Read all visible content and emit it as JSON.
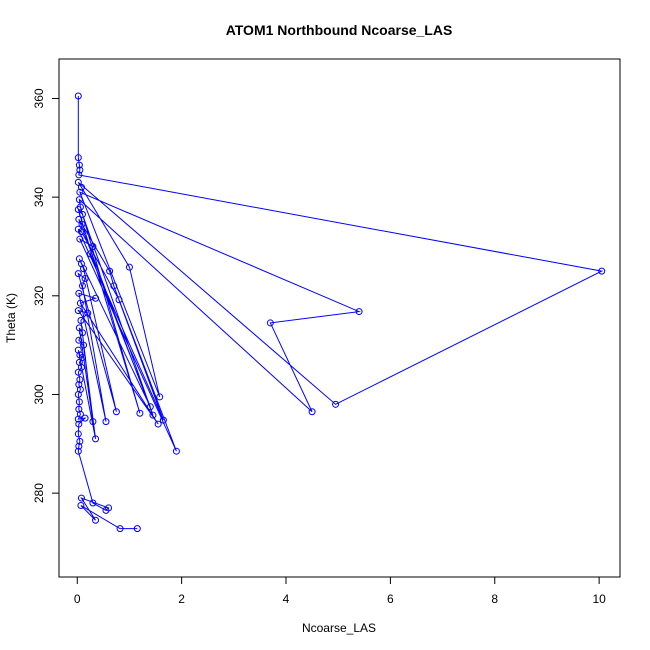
{
  "chart_data": {
    "type": "line",
    "title": "ATOM1 Northbound Ncoarse_LAS",
    "xlabel": "Ncoarse_LAS",
    "ylabel": "Theta (K)",
    "xlim": [
      -0.35,
      10.4
    ],
    "ylim": [
      263,
      368
    ],
    "xticks": [
      0,
      2,
      4,
      6,
      8,
      10
    ],
    "yticks": [
      280,
      300,
      320,
      340,
      360
    ],
    "grid": false,
    "legend": "none",
    "color": "#0000ff",
    "series": [
      {
        "points": [
          [
            0.02,
            360.5
          ],
          [
            0.02,
            348.0
          ],
          [
            0.04,
            346.5
          ],
          [
            0.05,
            345.5
          ],
          [
            0.03,
            344.5
          ],
          [
            10.05,
            325.0
          ],
          [
            4.95,
            298.0
          ],
          [
            0.02,
            343.0
          ],
          [
            0.08,
            342.0
          ],
          [
            1.0,
            325.8
          ],
          [
            1.58,
            299.5
          ],
          [
            0.05,
            341.0
          ],
          [
            5.4,
            316.8
          ],
          [
            3.7,
            314.5
          ],
          [
            4.5,
            296.5
          ],
          [
            0.04,
            339.5
          ],
          [
            0.06,
            338.0
          ],
          [
            1.2,
            296.2
          ],
          [
            0.02,
            337.5
          ],
          [
            0.1,
            336.5
          ],
          [
            1.45,
            295.8
          ],
          [
            0.03,
            335.5
          ],
          [
            0.09,
            334.5
          ],
          [
            0.62,
            325.0
          ],
          [
            0.7,
            322.0
          ],
          [
            1.65,
            294.8
          ],
          [
            0.02,
            333.5
          ],
          [
            0.08,
            333.0
          ],
          [
            0.8,
            319.2
          ],
          [
            1.9,
            288.5
          ],
          [
            0.05,
            331.5
          ],
          [
            0.3,
            330.0
          ],
          [
            0.25,
            328.5
          ],
          [
            1.4,
            297.5
          ],
          [
            0.04,
            327.5
          ],
          [
            0.08,
            326.5
          ],
          [
            0.12,
            325.5
          ],
          [
            0.75,
            296.5
          ],
          [
            0.02,
            324.5
          ],
          [
            0.15,
            323.5
          ],
          [
            0.1,
            322.0
          ],
          [
            0.55,
            294.5
          ],
          [
            0.03,
            320.5
          ],
          [
            0.35,
            319.5
          ],
          [
            0.06,
            318.5
          ],
          [
            1.55,
            294.0
          ],
          [
            0.02,
            317.0
          ],
          [
            0.2,
            316.5
          ],
          [
            0.07,
            315.0
          ],
          [
            0.3,
            294.5
          ],
          [
            0.04,
            313.5
          ],
          [
            0.1,
            312.5
          ],
          [
            0.03,
            311.0
          ],
          [
            0.12,
            310.0
          ],
          [
            0.35,
            291.0
          ],
          [
            0.02,
            309.0
          ],
          [
            0.05,
            308.0
          ],
          [
            0.1,
            307.5
          ],
          [
            0.04,
            306.5
          ],
          [
            0.08,
            305.5
          ],
          [
            0.02,
            304.5
          ],
          [
            0.05,
            303.0
          ],
          [
            0.03,
            302.0
          ],
          [
            0.06,
            301.0
          ],
          [
            0.02,
            300.0
          ],
          [
            0.04,
            298.5
          ],
          [
            0.03,
            297.0
          ],
          [
            0.06,
            296.0
          ],
          [
            0.02,
            295.0
          ],
          [
            0.15,
            295.2
          ],
          [
            0.03,
            294.0
          ],
          [
            0.02,
            292.0
          ],
          [
            0.05,
            290.5
          ],
          [
            0.03,
            289.5
          ],
          [
            0.02,
            288.5
          ],
          [
            0.3,
            278.0
          ],
          [
            0.55,
            276.5
          ],
          [
            0.6,
            277.0
          ],
          [
            0.08,
            279.0
          ],
          [
            0.35,
            274.5
          ],
          [
            0.07,
            277.5
          ],
          [
            0.82,
            272.8
          ],
          [
            1.15,
            272.8
          ]
        ]
      }
    ]
  }
}
